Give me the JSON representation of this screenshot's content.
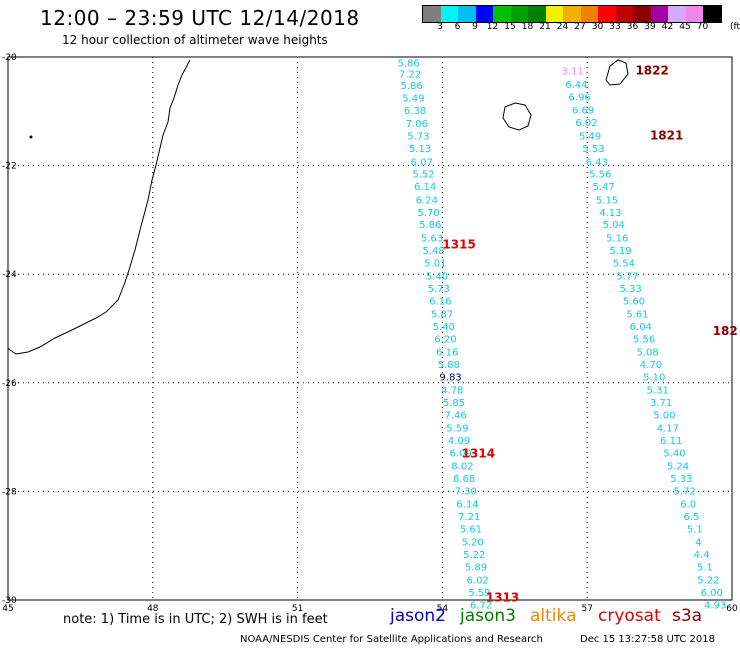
{
  "header": {
    "title": "12:00 – 23:59 UTC 12/14/2018",
    "subtitle": "12 hour collection of altimeter wave heights"
  },
  "colorbar": {
    "colors": [
      "#7f7f7f",
      "#00f5f5",
      "#00c0f0",
      "#0000ff",
      "#00c000",
      "#00a000",
      "#008000",
      "#f0f000",
      "#f0b000",
      "#f08000",
      "#ff0000",
      "#c00000",
      "#8b0000",
      "#a000a0",
      "#d8a8ff",
      "#ee88ee",
      "#000000"
    ],
    "ticks": [
      "3",
      "6",
      "9",
      "12",
      "15",
      "18",
      "21",
      "24",
      "27",
      "30",
      "33",
      "36",
      "39",
      "42",
      "45",
      "70"
    ],
    "unit": "(ft)"
  },
  "axes": {
    "x_ticks": [
      "45",
      "48",
      "51",
      "54",
      "57",
      "60"
    ],
    "y_ticks": [
      "-20",
      "-22",
      "-24",
      "-26",
      "-28",
      "-30"
    ]
  },
  "passes": [
    {
      "label": "1315",
      "color": "#e00000",
      "lon": 54.0,
      "lat": -23.45
    },
    {
      "label": "1314",
      "color": "#e00000",
      "lon": 54.4,
      "lat": -27.3
    },
    {
      "label": "1313",
      "color": "#e00000",
      "lon": 54.9,
      "lat": -29.95
    },
    {
      "label": "1822",
      "color": "#8b0000",
      "lon": 58.0,
      "lat": -20.25
    },
    {
      "label": "1821",
      "color": "#8b0000",
      "lon": 58.3,
      "lat": -21.45
    },
    {
      "label": "182",
      "color": "#8b0000",
      "lon": 59.6,
      "lat": -25.05
    }
  ],
  "track_1315": [
    {
      "v": "5.86",
      "lat": -20.1
    },
    {
      "v": "7.22",
      "lat": -20.3
    },
    {
      "v": "5.86",
      "lat": -20.52
    },
    {
      "v": "5.49",
      "lat": -20.75
    },
    {
      "v": "6.38",
      "lat": -20.98
    },
    {
      "v": "7.06",
      "lat": -21.22
    },
    {
      "v": "5.73",
      "lat": -21.45
    },
    {
      "v": "5.13",
      "lat": -21.68
    },
    {
      "v": "6.07",
      "lat": -21.92
    },
    {
      "v": "5.52",
      "lat": -22.15
    },
    {
      "v": "6.14",
      "lat": -22.38
    },
    {
      "v": "6.24",
      "lat": -22.62
    },
    {
      "v": "5.70",
      "lat": -22.85
    },
    {
      "v": "5.86",
      "lat": -23.08
    },
    {
      "v": "5.63",
      "lat": -23.32
    },
    {
      "v": "5.48",
      "lat": -23.55
    },
    {
      "v": "5.01",
      "lat": -23.78
    },
    {
      "v": "5.40",
      "lat": -24.02
    },
    {
      "v": "5.73",
      "lat": -24.25
    },
    {
      "v": "6.16",
      "lat": -24.48
    },
    {
      "v": "5.87",
      "lat": -24.72
    },
    {
      "v": "5.40",
      "lat": -24.95
    },
    {
      "v": "6.20",
      "lat": -25.18
    },
    {
      "v": "6.16",
      "lat": -25.42
    },
    {
      "v": "5.88",
      "lat": -25.65
    },
    {
      "v": "9.83",
      "lat": -25.88,
      "c": "#000080"
    },
    {
      "v": "4.78",
      "lat": -26.12
    },
    {
      "v": "5.85",
      "lat": -26.35
    },
    {
      "v": "7.46",
      "lat": -26.58
    },
    {
      "v": "5.59",
      "lat": -26.82
    },
    {
      "v": "4.09",
      "lat": -27.05
    },
    {
      "v": "6.09",
      "lat": -27.28
    },
    {
      "v": "8.02",
      "lat": -27.52
    },
    {
      "v": "8.68",
      "lat": -27.75
    },
    {
      "v": "7.30",
      "lat": -27.98
    },
    {
      "v": "6.14",
      "lat": -28.22
    },
    {
      "v": "7.21",
      "lat": -28.45
    },
    {
      "v": "5.61",
      "lat": -28.68
    },
    {
      "v": "5.20",
      "lat": -28.92
    },
    {
      "v": "5.22",
      "lat": -29.15
    },
    {
      "v": "5.89",
      "lat": -29.38
    },
    {
      "v": "6.02",
      "lat": -29.62
    },
    {
      "v": "5.59",
      "lat": -29.85
    },
    {
      "v": "6.72",
      "lat": -30.08
    }
  ],
  "track_1822": [
    {
      "v": "3.11",
      "lat": -20.25,
      "c": "#ee88ee"
    },
    {
      "v": "6.44",
      "lat": -20.5
    },
    {
      "v": "6.96",
      "lat": -20.73
    },
    {
      "v": "6.69",
      "lat": -20.97
    },
    {
      "v": "6.02",
      "lat": -21.2
    },
    {
      "v": "5.49",
      "lat": -21.45
    },
    {
      "v": "5.53",
      "lat": -21.68
    },
    {
      "v": "6.43",
      "lat": -21.92
    },
    {
      "v": "5.56",
      "lat": -22.15
    },
    {
      "v": "5.47",
      "lat": -22.38
    },
    {
      "v": "5.15",
      "lat": -22.62
    },
    {
      "v": "4.13",
      "lat": -22.85
    },
    {
      "v": "5.04",
      "lat": -23.08
    },
    {
      "v": "5.16",
      "lat": -23.32
    },
    {
      "v": "5.19",
      "lat": -23.55
    },
    {
      "v": "5.54",
      "lat": -23.78
    },
    {
      "v": "5.77",
      "lat": -24.02
    },
    {
      "v": "5.33",
      "lat": -24.25
    },
    {
      "v": "5.60",
      "lat": -24.48
    },
    {
      "v": "5.61",
      "lat": -24.72
    },
    {
      "v": "6.04",
      "lat": -24.95
    },
    {
      "v": "5.56",
      "lat": -25.18
    },
    {
      "v": "5.08",
      "lat": -25.42
    },
    {
      "v": "4.70",
      "lat": -25.65
    },
    {
      "v": "5.10",
      "lat": -25.88
    },
    {
      "v": "5.31",
      "lat": -26.12
    },
    {
      "v": "3.71",
      "lat": -26.35
    },
    {
      "v": "5.00",
      "lat": -26.58
    },
    {
      "v": "4.17",
      "lat": -26.82
    },
    {
      "v": "6.11",
      "lat": -27.05
    },
    {
      "v": "5.40",
      "lat": -27.28
    },
    {
      "v": "5.24",
      "lat": -27.52
    },
    {
      "v": "5.33",
      "lat": -27.75
    },
    {
      "v": "5.72",
      "lat": -27.98
    },
    {
      "v": "6.0",
      "lat": -28.22
    },
    {
      "v": "6.5",
      "lat": -28.45
    },
    {
      "v": "5.1",
      "lat": -28.68
    },
    {
      "v": "4",
      "lat": -28.92
    },
    {
      "v": "4.4",
      "lat": -29.15
    },
    {
      "v": "5.1",
      "lat": -29.38
    },
    {
      "v": "5.22",
      "lat": -29.62
    },
    {
      "v": "6.00",
      "lat": -29.85
    },
    {
      "v": "4.93",
      "lat": -30.08
    }
  ],
  "footer": {
    "note": "note: 1) Time is in UTC; 2) SWH is in feet",
    "satellites": [
      {
        "name": "jason2",
        "color": "#0000cc"
      },
      {
        "name": "jason3",
        "color": "#008000"
      },
      {
        "name": "altika",
        "color": "#e88a00"
      },
      {
        "name": "cryosat",
        "color": "#e00000"
      },
      {
        "name": "s3a",
        "color": "#8b0000"
      }
    ],
    "credit": "NOAA/NESDIS Center for Satellite Applications and Research",
    "timestamp": "Dec 15 13:27:58 UTC 2018"
  }
}
